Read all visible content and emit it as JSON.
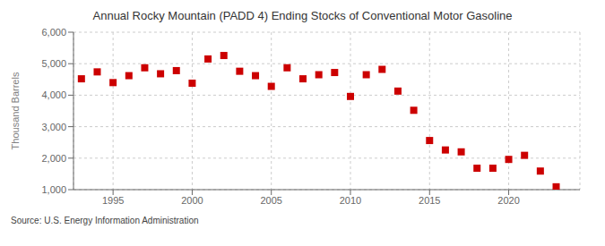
{
  "chart_data": {
    "type": "scatter",
    "title": "Annual Rocky Mountain (PADD 4) Ending Stocks of Conventional Motor Gasoline",
    "ylabel": "Thousand Barrels",
    "annotations": [
      "Source: U.S. Energy Information Administration"
    ],
    "x": [
      1993,
      1994,
      1995,
      1996,
      1997,
      1998,
      1999,
      2000,
      2001,
      2002,
      2003,
      2004,
      2005,
      2006,
      2007,
      2008,
      2009,
      2010,
      2011,
      2012,
      2013,
      2014,
      2015,
      2016,
      2017,
      2018,
      2019,
      2020,
      2021,
      2022,
      2023
    ],
    "values": [
      4520,
      4740,
      4400,
      4620,
      4870,
      4680,
      4780,
      4380,
      5150,
      5260,
      4760,
      4620,
      4280,
      4870,
      4520,
      4650,
      4720,
      3960,
      4650,
      4820,
      4130,
      3520,
      2560,
      2260,
      2200,
      1680,
      1680,
      1960,
      2090,
      1590,
      1090
    ],
    "color": "#cc0000",
    "marker": "square",
    "xlim": [
      1992.5,
      2024.5
    ],
    "xticks": [
      1995,
      2000,
      2005,
      2010,
      2015,
      2020
    ],
    "ylim": [
      1000,
      6000
    ],
    "yticks": [
      {
        "value": 1000,
        "label": "1,000"
      },
      {
        "value": 2000,
        "label": "2,000"
      },
      {
        "value": 3000,
        "label": "3,000"
      },
      {
        "value": 4000,
        "label": "4,000"
      },
      {
        "value": 5000,
        "label": "5,000"
      },
      {
        "value": 6000,
        "label": "6,000"
      }
    ],
    "grid": true
  }
}
